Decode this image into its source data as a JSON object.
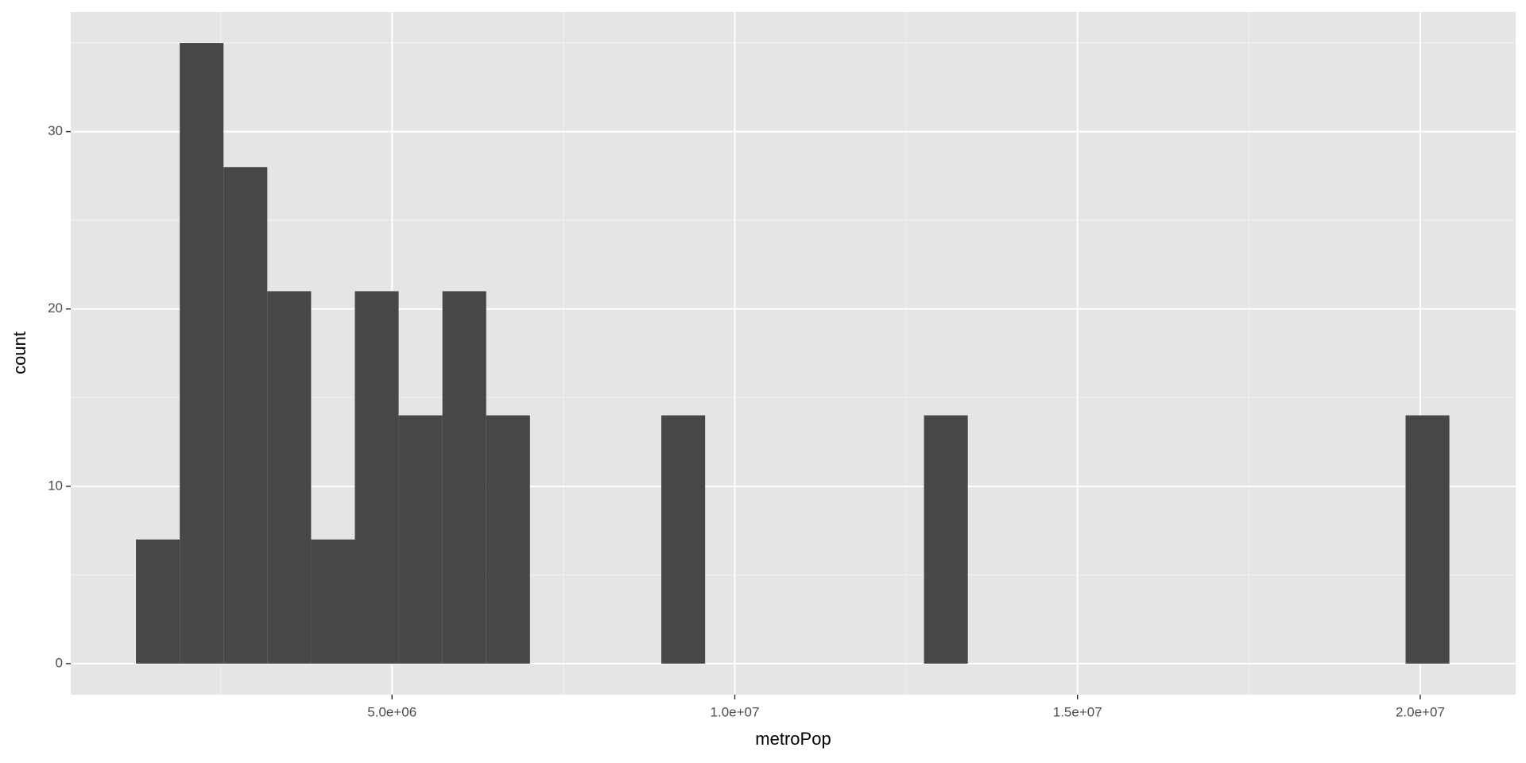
{
  "chart_data": {
    "type": "histogram",
    "x_label": "metroPop",
    "y_label": "count",
    "bins": [
      1264000,
      1902700,
      2541400,
      3180100,
      3818800,
      4457500,
      5096200,
      5734900,
      6373600,
      7012300,
      7651000,
      8289700,
      8928400,
      9567100,
      10205800,
      10844500,
      11483200,
      12121900,
      12760600,
      13399300,
      14038000,
      14676700,
      15315400,
      15954100,
      16592800,
      17231500,
      17870200,
      18508900,
      19147600,
      19786300,
      20425000
    ],
    "values": [
      7,
      35,
      28,
      21,
      7,
      21,
      14,
      21,
      14,
      0,
      0,
      0,
      14,
      0,
      0,
      0,
      0,
      0,
      14,
      0,
      0,
      0,
      0,
      0,
      0,
      0,
      0,
      0,
      0,
      14
    ],
    "color": "#474747",
    "xlim": [
      312500,
      21392000
    ],
    "xticks": [
      {
        "value": 5000000,
        "label": "5.0e+06"
      },
      {
        "value": 10000000,
        "label": "1.0e+07"
      },
      {
        "value": 15000000,
        "label": "1.5e+07"
      },
      {
        "value": 20000000,
        "label": "2.0e+07"
      }
    ],
    "ylim": [
      -1.75,
      36.75
    ],
    "yticks": [
      0,
      10,
      20,
      30
    ],
    "grid": true
  }
}
